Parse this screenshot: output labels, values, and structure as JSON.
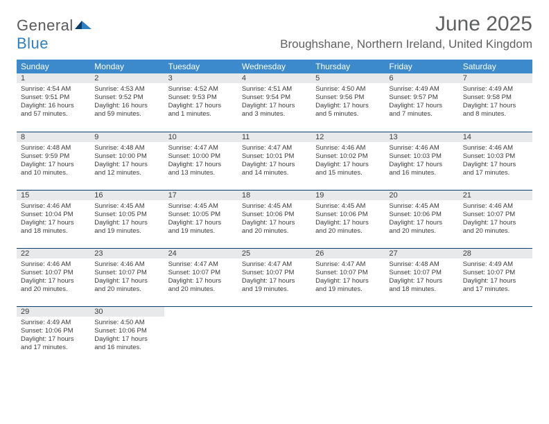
{
  "brand": {
    "general": "General",
    "blue": "Blue"
  },
  "title": "June 2025",
  "location": "Broughshane, Northern Ireland, United Kingdom",
  "colors": {
    "header_bg": "#3c8acb",
    "header_text": "#ffffff",
    "daybar_bg": "#e8e9ea",
    "week_border": "#0a3a66",
    "text": "#3a3a3a",
    "title_text": "#5f6062",
    "logo_general": "#5a5a5a",
    "logo_blue": "#2f7fc3"
  },
  "dayHeaders": [
    "Sunday",
    "Monday",
    "Tuesday",
    "Wednesday",
    "Thursday",
    "Friday",
    "Saturday"
  ],
  "weeks": [
    [
      {
        "n": "1",
        "sr": "4:54 AM",
        "ss": "9:51 PM",
        "dl": "16 hours and 57 minutes."
      },
      {
        "n": "2",
        "sr": "4:53 AM",
        "ss": "9:52 PM",
        "dl": "16 hours and 59 minutes."
      },
      {
        "n": "3",
        "sr": "4:52 AM",
        "ss": "9:53 PM",
        "dl": "17 hours and 1 minutes."
      },
      {
        "n": "4",
        "sr": "4:51 AM",
        "ss": "9:54 PM",
        "dl": "17 hours and 3 minutes."
      },
      {
        "n": "5",
        "sr": "4:50 AM",
        "ss": "9:56 PM",
        "dl": "17 hours and 5 minutes."
      },
      {
        "n": "6",
        "sr": "4:49 AM",
        "ss": "9:57 PM",
        "dl": "17 hours and 7 minutes."
      },
      {
        "n": "7",
        "sr": "4:49 AM",
        "ss": "9:58 PM",
        "dl": "17 hours and 8 minutes."
      }
    ],
    [
      {
        "n": "8",
        "sr": "4:48 AM",
        "ss": "9:59 PM",
        "dl": "17 hours and 10 minutes."
      },
      {
        "n": "9",
        "sr": "4:48 AM",
        "ss": "10:00 PM",
        "dl": "17 hours and 12 minutes."
      },
      {
        "n": "10",
        "sr": "4:47 AM",
        "ss": "10:00 PM",
        "dl": "17 hours and 13 minutes."
      },
      {
        "n": "11",
        "sr": "4:47 AM",
        "ss": "10:01 PM",
        "dl": "17 hours and 14 minutes."
      },
      {
        "n": "12",
        "sr": "4:46 AM",
        "ss": "10:02 PM",
        "dl": "17 hours and 15 minutes."
      },
      {
        "n": "13",
        "sr": "4:46 AM",
        "ss": "10:03 PM",
        "dl": "17 hours and 16 minutes."
      },
      {
        "n": "14",
        "sr": "4:46 AM",
        "ss": "10:03 PM",
        "dl": "17 hours and 17 minutes."
      }
    ],
    [
      {
        "n": "15",
        "sr": "4:46 AM",
        "ss": "10:04 PM",
        "dl": "17 hours and 18 minutes."
      },
      {
        "n": "16",
        "sr": "4:45 AM",
        "ss": "10:05 PM",
        "dl": "17 hours and 19 minutes."
      },
      {
        "n": "17",
        "sr": "4:45 AM",
        "ss": "10:05 PM",
        "dl": "17 hours and 19 minutes."
      },
      {
        "n": "18",
        "sr": "4:45 AM",
        "ss": "10:06 PM",
        "dl": "17 hours and 20 minutes."
      },
      {
        "n": "19",
        "sr": "4:45 AM",
        "ss": "10:06 PM",
        "dl": "17 hours and 20 minutes."
      },
      {
        "n": "20",
        "sr": "4:45 AM",
        "ss": "10:06 PM",
        "dl": "17 hours and 20 minutes."
      },
      {
        "n": "21",
        "sr": "4:46 AM",
        "ss": "10:07 PM",
        "dl": "17 hours and 20 minutes."
      }
    ],
    [
      {
        "n": "22",
        "sr": "4:46 AM",
        "ss": "10:07 PM",
        "dl": "17 hours and 20 minutes."
      },
      {
        "n": "23",
        "sr": "4:46 AM",
        "ss": "10:07 PM",
        "dl": "17 hours and 20 minutes."
      },
      {
        "n": "24",
        "sr": "4:47 AM",
        "ss": "10:07 PM",
        "dl": "17 hours and 20 minutes."
      },
      {
        "n": "25",
        "sr": "4:47 AM",
        "ss": "10:07 PM",
        "dl": "17 hours and 19 minutes."
      },
      {
        "n": "26",
        "sr": "4:47 AM",
        "ss": "10:07 PM",
        "dl": "17 hours and 19 minutes."
      },
      {
        "n": "27",
        "sr": "4:48 AM",
        "ss": "10:07 PM",
        "dl": "17 hours and 18 minutes."
      },
      {
        "n": "28",
        "sr": "4:49 AM",
        "ss": "10:07 PM",
        "dl": "17 hours and 17 minutes."
      }
    ],
    [
      {
        "n": "29",
        "sr": "4:49 AM",
        "ss": "10:06 PM",
        "dl": "17 hours and 17 minutes."
      },
      {
        "n": "30",
        "sr": "4:50 AM",
        "ss": "10:06 PM",
        "dl": "17 hours and 16 minutes."
      },
      null,
      null,
      null,
      null,
      null
    ]
  ],
  "labels": {
    "sunrise": "Sunrise:",
    "sunset": "Sunset:",
    "daylight": "Daylight:"
  }
}
